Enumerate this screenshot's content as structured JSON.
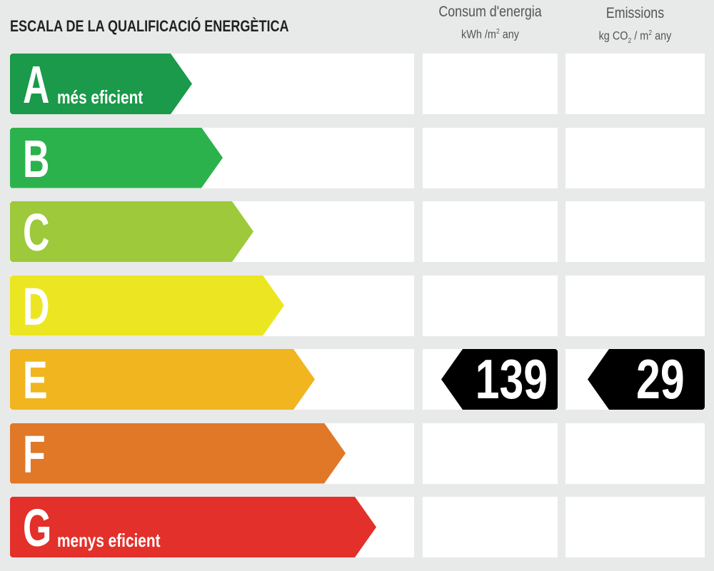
{
  "title": "ESCALA DE LA QUALIFICACIÓ ENERGÈTICA",
  "columns": {
    "energy": {
      "label": "Consum d'energia",
      "unit_pre": "kWh /m",
      "unit_sup": "2",
      "unit_post": " any"
    },
    "emissions": {
      "label": "Emissions",
      "unit_pre": "kg CO",
      "unit_sub": "2",
      "unit_mid": " / m",
      "unit_sup": "2",
      "unit_post": " any"
    }
  },
  "classes": [
    {
      "letter": "A",
      "subtitle": "més eficient",
      "color": "#1a9a4a"
    },
    {
      "letter": "B",
      "subtitle": "",
      "color": "#2bb24c"
    },
    {
      "letter": "C",
      "subtitle": "",
      "color": "#9dc93b"
    },
    {
      "letter": "D",
      "subtitle": "",
      "color": "#ece622"
    },
    {
      "letter": "E",
      "subtitle": "",
      "color": "#f0b51f"
    },
    {
      "letter": "F",
      "subtitle": "",
      "color": "#e07828"
    },
    {
      "letter": "G",
      "subtitle": "menys eficient",
      "color": "#e3302a"
    }
  ],
  "rating": {
    "class": "E",
    "energy_value": "139",
    "emissions_value": "29"
  }
}
